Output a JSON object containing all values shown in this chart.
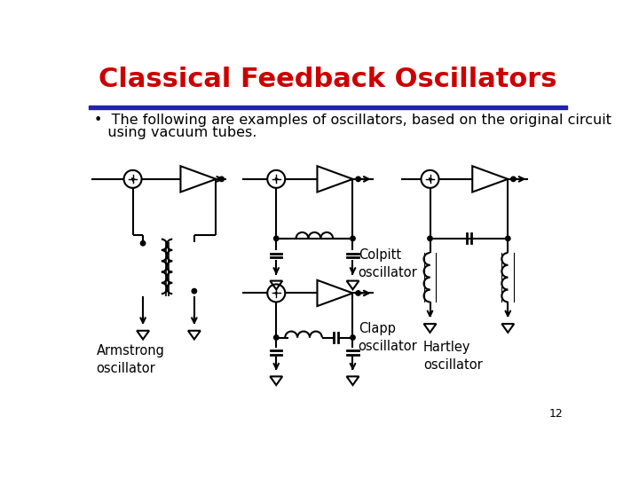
{
  "title": "Classical Feedback Oscillators",
  "title_color": "#CC0000",
  "title_fontsize": 22,
  "subtitle_line1": "•  The following are examples of oscillators, based on the original circuit",
  "subtitle_line2": "   using vacuum tubes.",
  "subtitle_fontsize": 11.5,
  "bg_color": "#FFFFFF",
  "line_color": "#000000",
  "blue_bar_color": "#2222AA",
  "page_number": "12",
  "labels": {
    "armstrong": "Armstrong\noscillator",
    "colpitt": "Colpitt\noscillator",
    "hartley": "Hartley\noscillator",
    "clapp": "Clapp\noscillator"
  },
  "label_fontsize": 10.5
}
